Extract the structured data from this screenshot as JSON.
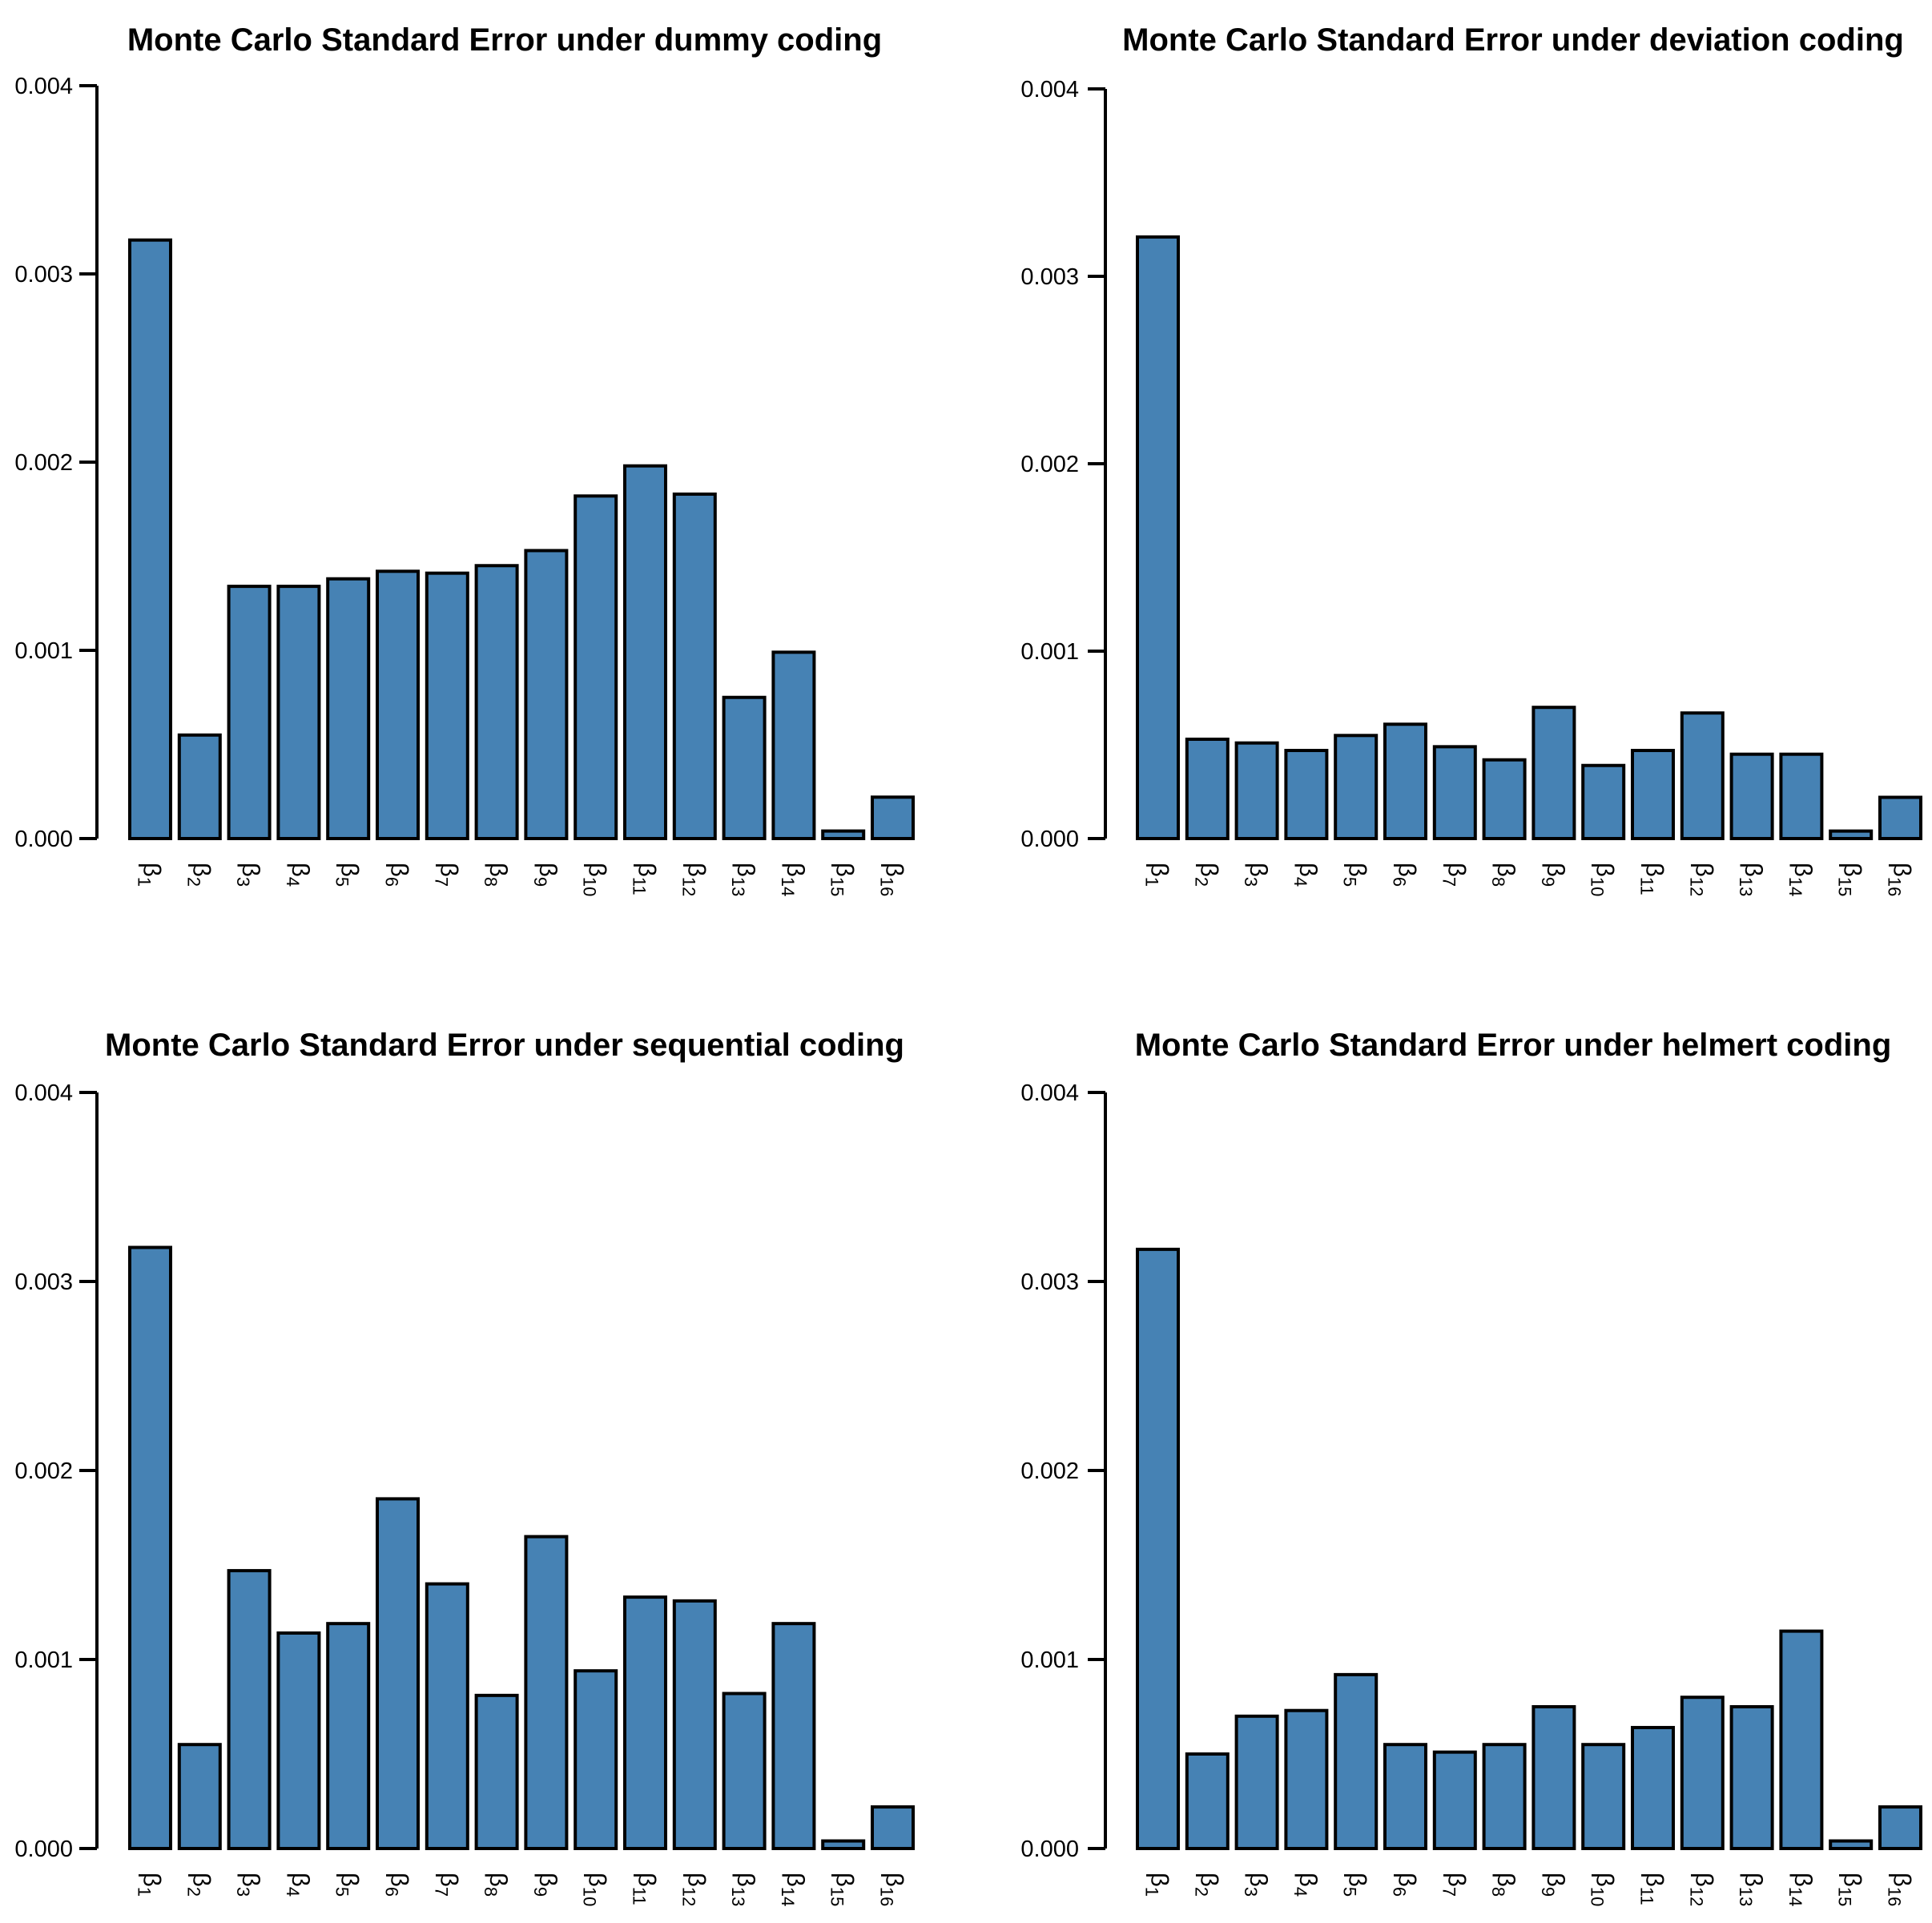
{
  "figure": {
    "kind": "2x2 grid of bar charts",
    "background": "#FFFFFF"
  },
  "colors": {
    "bar_fill": "#4682B4",
    "bar_stroke": "#000000",
    "axis": "#000000",
    "text": "#000000"
  },
  "chart_data": [
    {
      "id": "dummy",
      "type": "bar",
      "title": "Monte Carlo Standard Error under dummy coding",
      "categories": [
        "β1",
        "β2",
        "β3",
        "β4",
        "β5",
        "β6",
        "β7",
        "β8",
        "β9",
        "β10",
        "β11",
        "β12",
        "β13",
        "β14",
        "β15",
        "β16"
      ],
      "values": [
        0.00318,
        0.00055,
        0.00134,
        0.00134,
        0.00138,
        0.00142,
        0.00141,
        0.00145,
        0.00153,
        0.00182,
        0.00198,
        0.00183,
        0.00075,
        0.00099,
        4e-05,
        0.00022
      ],
      "xlabel": "",
      "ylabel": "",
      "ylim": [
        0,
        0.004
      ],
      "yticks": [
        0,
        0.001,
        0.002,
        0.003,
        0.004
      ],
      "y_tick_labels": [
        "0.000",
        "0.001",
        "0.002",
        "0.003",
        "0.004"
      ],
      "grid": false,
      "legend": "none",
      "bar_color": "#4682B4",
      "bar_border": "#000000"
    },
    {
      "id": "deviation",
      "type": "bar",
      "title": "Monte Carlo Standard Error under deviation coding",
      "categories": [
        "β1",
        "β2",
        "β3",
        "β4",
        "β5",
        "β6",
        "β7",
        "β8",
        "β9",
        "β10",
        "β11",
        "β12",
        "β13",
        "β14",
        "β15",
        "β16"
      ],
      "values": [
        0.00321,
        0.00053,
        0.00051,
        0.00047,
        0.00055,
        0.00061,
        0.00049,
        0.00042,
        0.0007,
        0.00039,
        0.00047,
        0.00067,
        0.00045,
        0.00045,
        4e-05,
        0.00022
      ],
      "xlabel": "",
      "ylabel": "",
      "ylim": [
        0,
        0.004
      ],
      "yticks": [
        0,
        0.001,
        0.002,
        0.003,
        0.004
      ],
      "y_tick_labels": [
        "0.000",
        "0.001",
        "0.002",
        "0.003",
        "0.004"
      ],
      "grid": false,
      "legend": "none",
      "bar_color": "#4682B4",
      "bar_border": "#000000"
    },
    {
      "id": "sequential",
      "type": "bar",
      "title": "Monte Carlo Standard Error under sequential coding",
      "categories": [
        "β1",
        "β2",
        "β3",
        "β4",
        "β5",
        "β6",
        "β7",
        "β8",
        "β9",
        "β10",
        "β11",
        "β12",
        "β13",
        "β14",
        "β15",
        "β16"
      ],
      "values": [
        0.00318,
        0.00055,
        0.00147,
        0.00114,
        0.00119,
        0.00185,
        0.0014,
        0.00081,
        0.00165,
        0.00094,
        0.00133,
        0.00131,
        0.00082,
        0.00119,
        4e-05,
        0.00022
      ],
      "xlabel": "",
      "ylabel": "",
      "ylim": [
        0,
        0.004
      ],
      "yticks": [
        0,
        0.001,
        0.002,
        0.003,
        0.004
      ],
      "y_tick_labels": [
        "0.000",
        "0.001",
        "0.002",
        "0.003",
        "0.004"
      ],
      "grid": false,
      "legend": "none",
      "bar_color": "#4682B4",
      "bar_border": "#000000"
    },
    {
      "id": "helmert",
      "type": "bar",
      "title": "Monte Carlo Standard Error under helmert coding",
      "categories": [
        "β1",
        "β2",
        "β3",
        "β4",
        "β5",
        "β6",
        "β7",
        "β8",
        "β9",
        "β10",
        "β11",
        "β12",
        "β13",
        "β14",
        "β15",
        "β16"
      ],
      "values": [
        0.00317,
        0.0005,
        0.0007,
        0.00073,
        0.00092,
        0.00055,
        0.00051,
        0.00055,
        0.00075,
        0.00055,
        0.00064,
        0.0008,
        0.00075,
        0.00115,
        4e-05,
        0.00022
      ],
      "xlabel": "",
      "ylabel": "",
      "ylim": [
        0,
        0.004
      ],
      "yticks": [
        0,
        0.001,
        0.002,
        0.003,
        0.004
      ],
      "y_tick_labels": [
        "0.000",
        "0.001",
        "0.002",
        "0.003",
        "0.004"
      ],
      "grid": false,
      "legend": "none",
      "bar_color": "#4682B4",
      "bar_border": "#000000"
    }
  ]
}
